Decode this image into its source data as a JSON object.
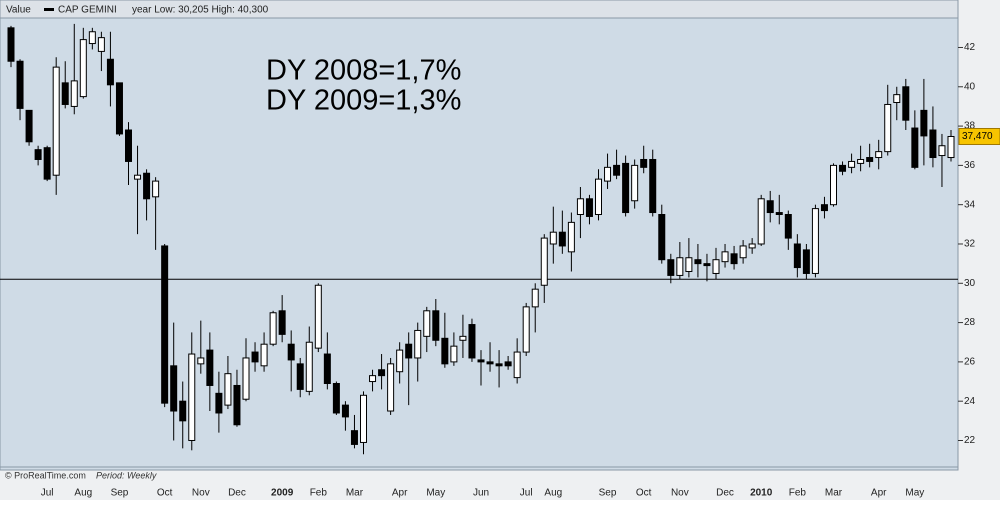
{
  "header": {
    "value_caption": "Value",
    "legend": "CAP GEMINI",
    "range_text": "year Low: 30,205 High: 40,300"
  },
  "footer": {
    "source": "© ProRealTime.com",
    "period": "Period: Weekly"
  },
  "chart_data": {
    "type": "candlestick",
    "annotations": [
      "DY 2008=1,7%",
      "DY 2009=1,3%"
    ],
    "up_color": "#ffffff",
    "down_color": "#000000",
    "hline": {
      "value": 30.205
    },
    "last_value": {
      "value": 37.47,
      "label": "37,470"
    },
    "ylim": [
      20.6,
      43.5
    ],
    "yticks": [
      22,
      24,
      26,
      28,
      30,
      32,
      34,
      36,
      38,
      40,
      42
    ],
    "categories": [
      null,
      null,
      null,
      null,
      "Jul",
      null,
      null,
      null,
      "Aug",
      null,
      null,
      null,
      "Sep",
      null,
      null,
      null,
      null,
      "Oct",
      null,
      null,
      null,
      "Nov",
      null,
      null,
      null,
      "Dec",
      null,
      null,
      null,
      null,
      "2009",
      null,
      null,
      null,
      "Feb",
      null,
      null,
      null,
      "Mar",
      null,
      null,
      null,
      null,
      "Apr",
      null,
      null,
      null,
      "May",
      null,
      null,
      null,
      null,
      "Jun",
      null,
      null,
      null,
      null,
      "Jul",
      null,
      null,
      "Aug",
      null,
      null,
      null,
      null,
      null,
      "Sep",
      null,
      null,
      null,
      "Oct",
      null,
      null,
      null,
      "Nov",
      null,
      null,
      null,
      null,
      "Dec",
      null,
      null,
      null,
      "2010",
      null,
      null,
      null,
      "Feb",
      null,
      null,
      null,
      "Mar",
      null,
      null,
      null,
      null,
      "Apr",
      null,
      null,
      null,
      "May",
      null,
      null,
      null,
      null
    ],
    "open": [
      43,
      41.3,
      38.8,
      36.8,
      36.9,
      35.5,
      40.2,
      39,
      39.5,
      42.2,
      41.8,
      41.4,
      40.2,
      37.8,
      35.3,
      35.6,
      34.4,
      31.9,
      25.8,
      24,
      22,
      25.9,
      26.6,
      24.4,
      23.8,
      24.8,
      24.1,
      26.5,
      25.8,
      26.9,
      28.6,
      26.9,
      25.9,
      24.5,
      26.7,
      26.4,
      24.9,
      23.8,
      22.5,
      21.9,
      25,
      25.6,
      23.5,
      25.5,
      26.9,
      26.2,
      27.3,
      28.6,
      27.2,
      26,
      27.1,
      27.9,
      26.1,
      26,
      25.9,
      26,
      25.2,
      26.5,
      28.8,
      29.9,
      32,
      32.6,
      31.6,
      33.5,
      34.3,
      33.5,
      35.2,
      36,
      36.1,
      34.2,
      36.3,
      36.3,
      33.5,
      31.2,
      30.4,
      30.6,
      31.2,
      31,
      30.5,
      31.1,
      31.5,
      31.3,
      31.8,
      32,
      34.2,
      33.6,
      33.5,
      32,
      31.7,
      30.5,
      34,
      34,
      36,
      35.9,
      36.1,
      36.4,
      36.4,
      36.7,
      39.2,
      40,
      37.9,
      38.8,
      37.8,
      36.5,
      36.4
    ],
    "high": [
      43.1,
      41.4,
      38.8,
      37,
      37,
      41.5,
      41.3,
      43.2,
      43,
      43,
      42.8,
      42.8,
      40.2,
      38.2,
      37,
      35.8,
      35.4,
      32,
      28,
      25,
      27.5,
      28.1,
      27.5,
      25.5,
      26.3,
      25.6,
      27.2,
      27,
      27.5,
      28.6,
      29.4,
      27.6,
      26.2,
      27.8,
      30,
      27.5,
      25,
      24,
      23.3,
      24.5,
      25.6,
      26.4,
      26.2,
      27,
      27.5,
      28,
      28.8,
      29.2,
      28.5,
      27.5,
      28.4,
      28.2,
      26.6,
      27,
      26.6,
      26.3,
      27.2,
      29,
      30,
      32.5,
      33.9,
      33.7,
      33.6,
      34.9,
      34.5,
      35.8,
      36.6,
      36.8,
      36.5,
      36.3,
      37,
      36.8,
      34,
      31.5,
      32.1,
      32.3,
      32,
      31.5,
      31.8,
      32,
      31.9,
      32.2,
      32.3,
      34.5,
      34.7,
      34.5,
      33.7,
      32.5,
      32,
      34,
      34.4,
      36.1,
      36.2,
      36.6,
      37,
      37.1,
      37.3,
      40.1,
      40,
      40.4,
      38.8,
      40.4,
      39,
      37.6,
      37.8
    ],
    "low": [
      41,
      38.3,
      37,
      36,
      35.2,
      34.5,
      38.9,
      38.6,
      39.4,
      41.9,
      40.8,
      39,
      37.5,
      35,
      32.5,
      33.2,
      31.7,
      23.7,
      22,
      21.6,
      21.5,
      25.4,
      23.5,
      22.4,
      23.6,
      22.7,
      24,
      25.5,
      25.5,
      26.8,
      27,
      24.5,
      24.2,
      24.3,
      26.5,
      24.6,
      23.3,
      22.5,
      21.6,
      21.3,
      24.5,
      24.6,
      23.3,
      24.9,
      23.8,
      25,
      26.5,
      26.8,
      25.7,
      25.8,
      26.2,
      26,
      24.8,
      25.5,
      24.7,
      25.6,
      24.9,
      26.3,
      27.5,
      29,
      31,
      31.5,
      30.6,
      32.3,
      33,
      33.2,
      34.8,
      35.3,
      33.4,
      33.8,
      35.6,
      33.4,
      31,
      30,
      30.2,
      30.3,
      30.3,
      30.1,
      30.2,
      30.8,
      30.7,
      31,
      31.5,
      31.9,
      33.1,
      33,
      31.7,
      30.3,
      30.2,
      30.3,
      33.3,
      33.9,
      35.5,
      35.6,
      35.7,
      35.9,
      35.8,
      36.5,
      38.3,
      37.8,
      35.8,
      36,
      35.9,
      34.9,
      36.2
    ],
    "close": [
      41.3,
      38.9,
      37.2,
      36.3,
      35.3,
      41,
      39.1,
      40.3,
      42.4,
      42.8,
      42.5,
      40.1,
      37.6,
      36.2,
      35.5,
      34.3,
      35.2,
      23.9,
      23.5,
      23,
      26.4,
      26.2,
      24.8,
      23.4,
      25.4,
      22.8,
      26.2,
      26,
      26.9,
      28.5,
      27.4,
      26.1,
      24.6,
      27,
      29.9,
      24.9,
      23.4,
      23.2,
      21.8,
      24.3,
      25.3,
      25.3,
      25.9,
      26.6,
      26.2,
      27.6,
      28.6,
      27.1,
      25.9,
      26.8,
      27.3,
      26.2,
      26,
      25.9,
      25.8,
      25.8,
      26.5,
      28.8,
      29.7,
      32.3,
      32.6,
      31.9,
      33.1,
      34.3,
      33.4,
      35.3,
      35.9,
      35.5,
      33.6,
      36,
      35.9,
      33.6,
      31.2,
      30.4,
      31.3,
      31.3,
      31,
      30.9,
      31.2,
      31.6,
      31,
      31.9,
      32,
      34.3,
      33.6,
      33.5,
      32.3,
      30.8,
      30.5,
      33.8,
      33.7,
      36,
      35.7,
      36.2,
      36.3,
      36.2,
      36.7,
      39.1,
      39.6,
      38.3,
      35.9,
      37.5,
      36.4,
      37,
      37.47
    ]
  }
}
